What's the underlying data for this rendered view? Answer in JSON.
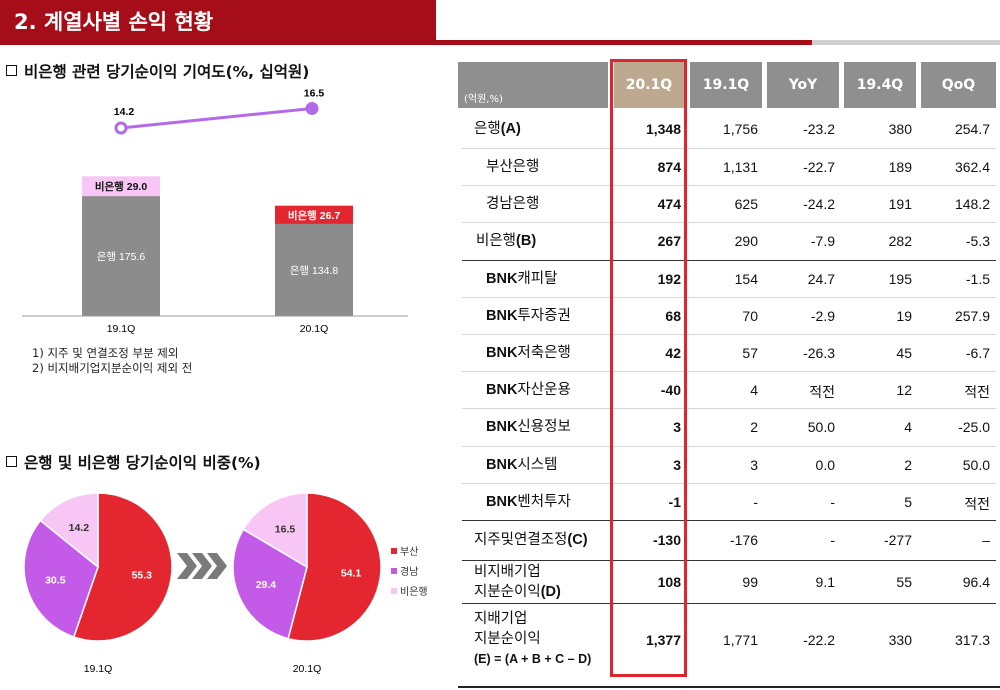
{
  "title": "2. 계열사별 손익 현황",
  "bar_section": {
    "heading": "비은행 관련 당기순이익 기여도(%, 십억원)",
    "line_values": [
      "14.2",
      "16.5"
    ],
    "bars": [
      {
        "period": "19.1Q",
        "bank_label": "은행  175.6",
        "nonbank_label": "비은행  29.0",
        "bank": 175.6,
        "nonbank": 29.0
      },
      {
        "period": "20.1Q",
        "bank_label": "은행  134.8",
        "nonbank_label": "비은행  26.7",
        "bank": 134.8,
        "nonbank": 26.7
      }
    ],
    "notes": [
      "1) 지주 및 연결조정 부분 제외",
      "2) 비지배기업지분순이익 제외 전"
    ]
  },
  "pie_section": {
    "heading": "은행 및 비은행 당기순이익 비중(%)",
    "legend": [
      "부산",
      "경남",
      "비은행"
    ],
    "colors": {
      "busan": "#e3262f",
      "gyeongnam": "#c35be8",
      "nonbank": "#f8c6f5",
      "line": "#b26ae6",
      "bar": "#8c8c8c",
      "highlight": "#a50d19"
    }
  },
  "chart_data": [
    {
      "type": "bar",
      "title": "비은행 관련 당기순이익 기여도(%, 십억원)",
      "categories": [
        "19.1Q",
        "20.1Q"
      ],
      "series": [
        {
          "name": "은행",
          "values": [
            175.6,
            134.8
          ]
        },
        {
          "name": "비은행",
          "values": [
            29.0,
            26.7
          ]
        }
      ],
      "line_series": {
        "values": [
          14.2,
          16.5
        ]
      }
    },
    {
      "type": "pie",
      "category": "19.1Q",
      "labels": [
        "부산",
        "경남",
        "비은행"
      ],
      "values": [
        55.3,
        30.5,
        14.2
      ]
    },
    {
      "type": "pie",
      "category": "20.1Q",
      "labels": [
        "부산",
        "경남",
        "비은행"
      ],
      "values": [
        54.1,
        29.4,
        16.5
      ]
    }
  ],
  "table": {
    "unit": "(억원,%)",
    "columns": [
      "20.1Q",
      "19.1Q",
      "YoY",
      "19.4Q",
      "QoQ"
    ],
    "rows": [
      {
        "label": "은행",
        "paren": "(A)",
        "values": [
          "1,348",
          "1,756",
          "-23.2",
          "380",
          "254.7"
        ]
      },
      {
        "label": "부산은행",
        "paren": "",
        "values": [
          "874",
          "1,131",
          "-22.7",
          "189",
          "362.4"
        ]
      },
      {
        "label": "경남은행",
        "paren": "",
        "values": [
          "474",
          "625",
          "-24.2",
          "191",
          "148.2"
        ]
      },
      {
        "label": "비은행",
        "paren": "(B)",
        "values": [
          "267",
          "290",
          "-7.9",
          "282",
          "-5.3"
        ]
      },
      {
        "label": "캐피탈",
        "prefix": "BNK",
        "values": [
          "192",
          "154",
          "24.7",
          "195",
          "-1.5"
        ]
      },
      {
        "label": "투자증권",
        "prefix": "BNK",
        "values": [
          "68",
          "70",
          "-2.9",
          "19",
          "257.9"
        ]
      },
      {
        "label": "저축은행",
        "prefix": "BNK",
        "values": [
          "42",
          "57",
          "-26.3",
          "45",
          "-6.7"
        ]
      },
      {
        "label": "자산운용",
        "prefix": "BNK",
        "values": [
          "-40",
          "4",
          "적전",
          "12",
          "적전"
        ]
      },
      {
        "label": "신용정보",
        "prefix": "BNK",
        "values": [
          "3",
          "2",
          "50.0",
          "4",
          "-25.0"
        ]
      },
      {
        "label": "시스템",
        "prefix": "BNK",
        "values": [
          "3",
          "3",
          "0.0",
          "2",
          "50.0"
        ]
      },
      {
        "label": "벤처투자",
        "prefix": "BNK",
        "values": [
          "-1",
          "-",
          "-",
          "5",
          "적전"
        ]
      },
      {
        "label": "지주및연결조정",
        "paren": "(C)",
        "values": [
          "-130",
          "-176",
          "-",
          "-277",
          "–"
        ]
      },
      {
        "label": "비지배기업",
        "label2": "지분순이익",
        "paren": "(D)",
        "values": [
          "108",
          "99",
          "9.1",
          "55",
          "96.4"
        ]
      },
      {
        "label": "지배기업",
        "label2": "지분순이익",
        "label3": "(E) = (A + B + C – D)",
        "values": [
          "1,377",
          "1,771",
          "-22.2",
          "330",
          "317.3"
        ]
      }
    ]
  }
}
